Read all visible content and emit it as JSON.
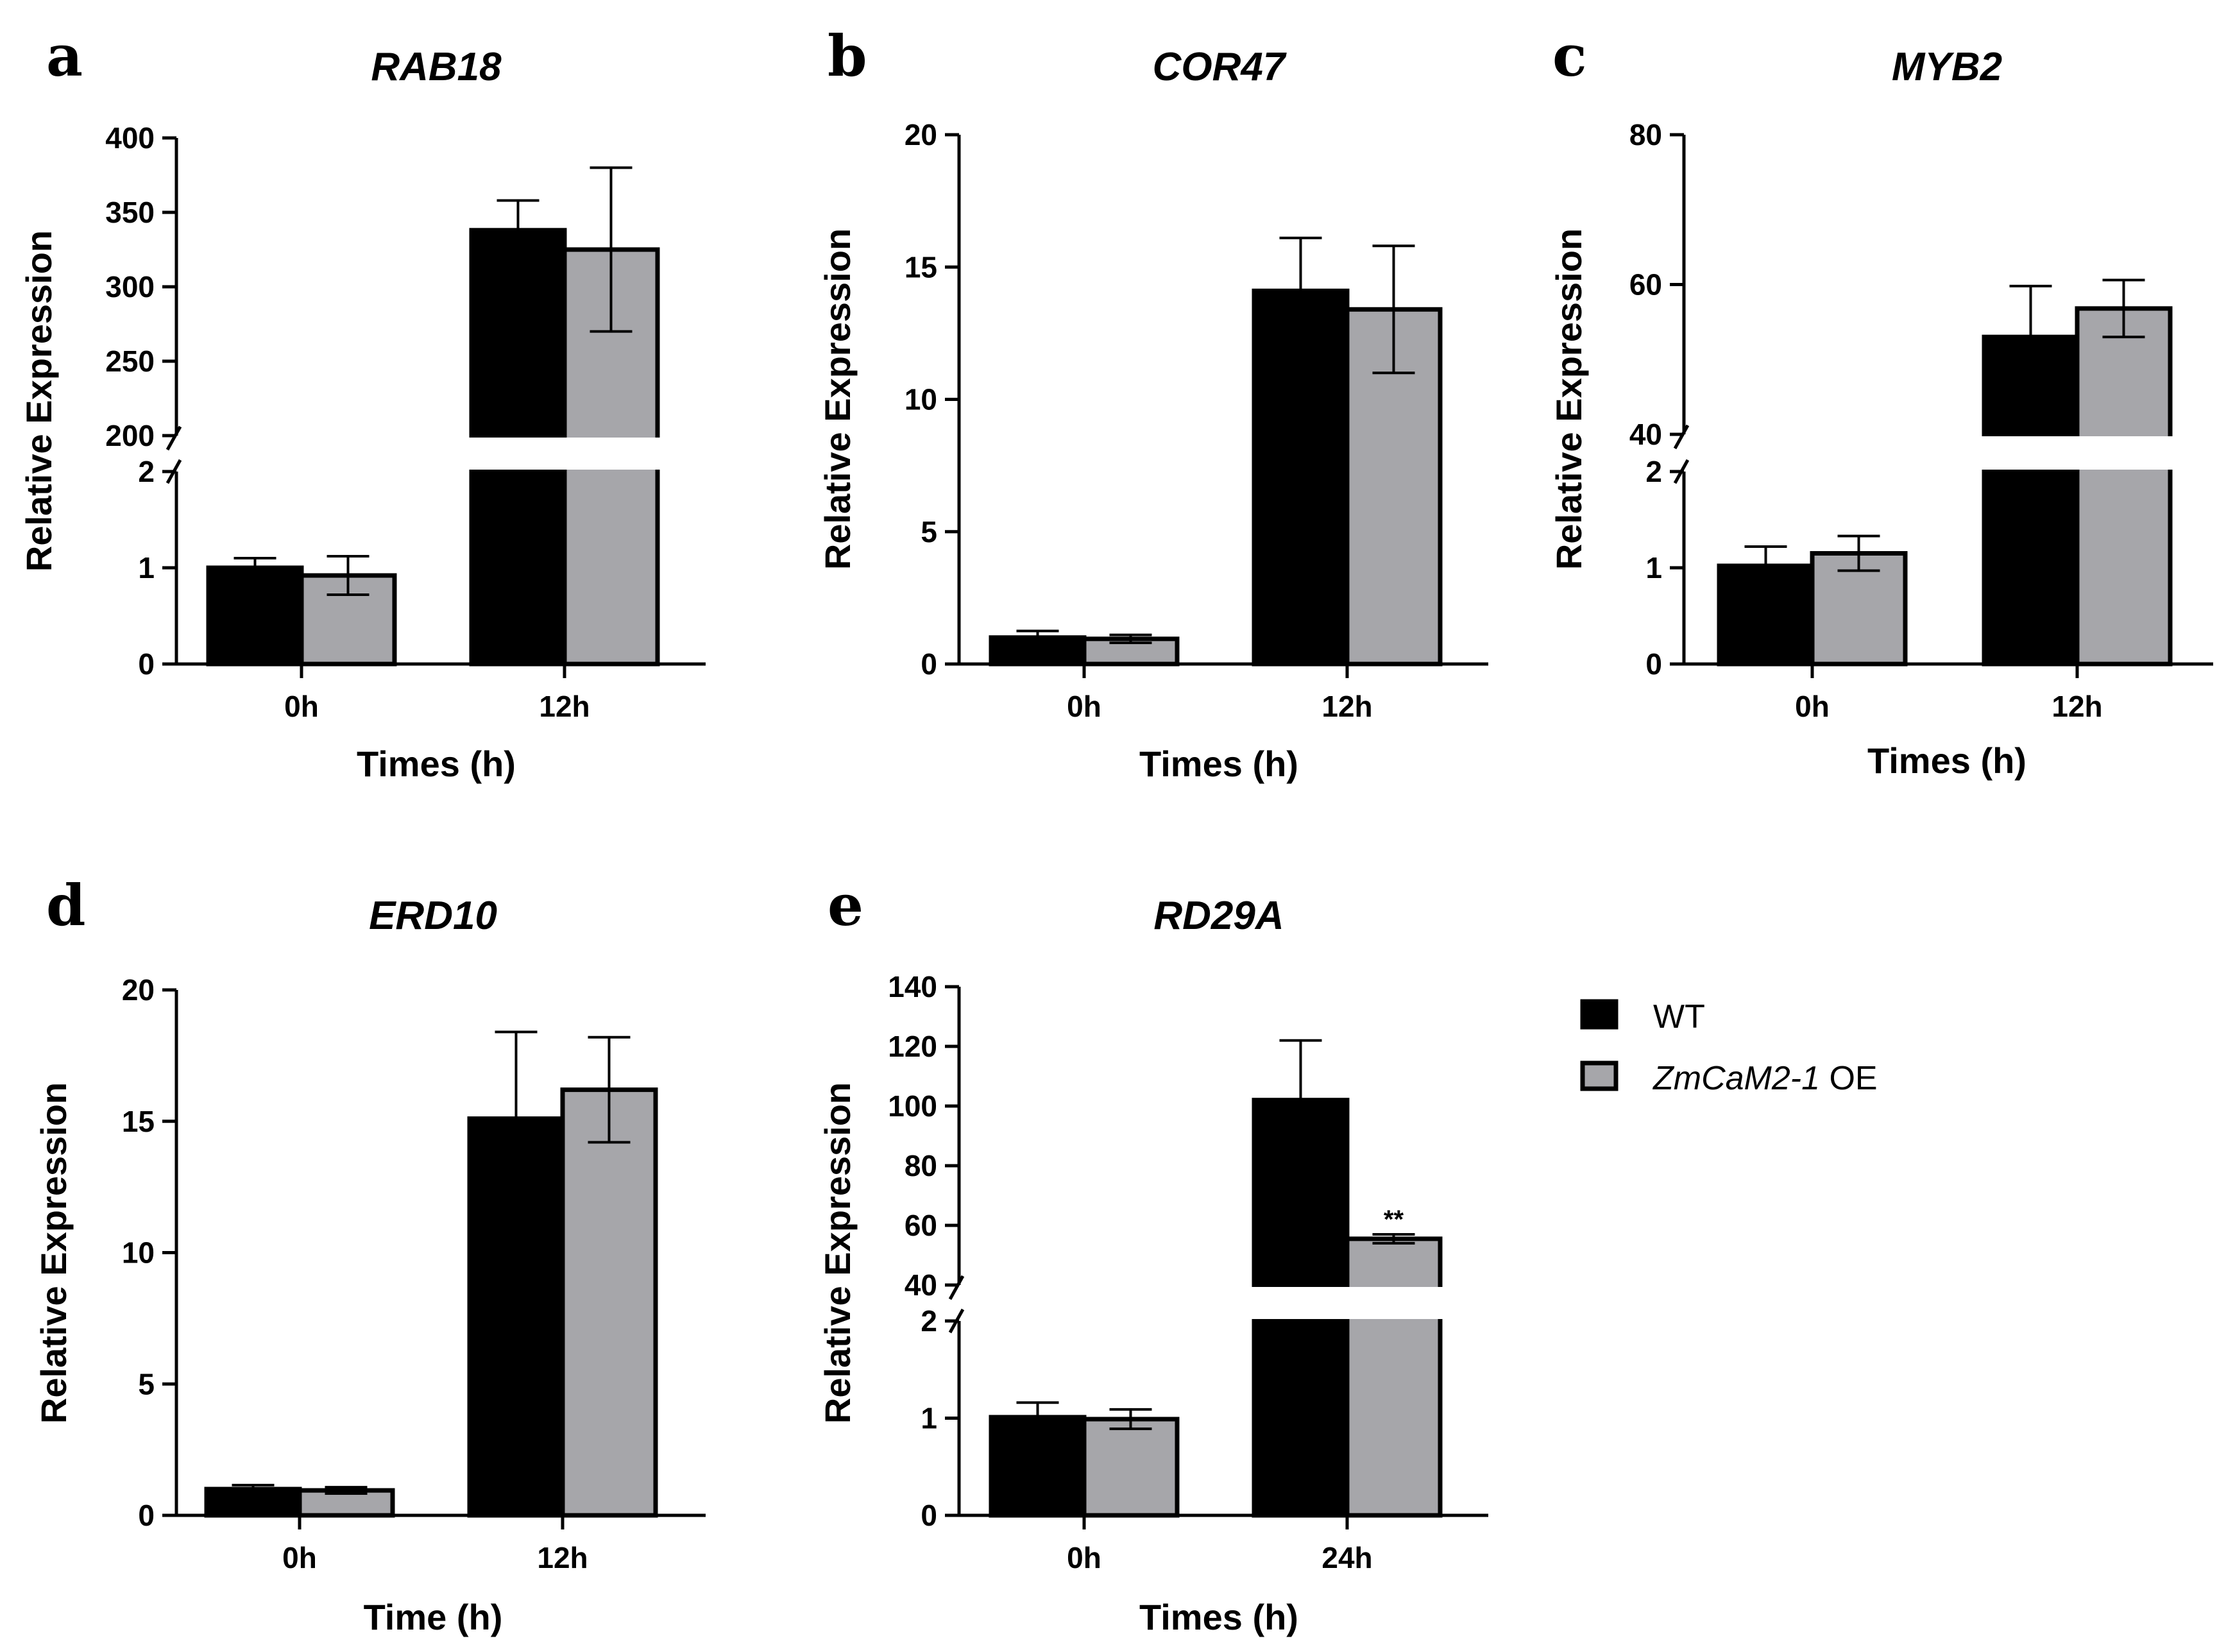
{
  "legend": {
    "items": [
      {
        "label": "WT",
        "color": "#000000"
      },
      {
        "label": "ZmCaM2-1",
        "label_suffix": " OE",
        "color": "#a6a6aa"
      }
    ]
  },
  "chart_data": [
    {
      "panel": "a",
      "title": "RAB18",
      "type": "bar",
      "xlabel": "Times (h)",
      "ylabel": "Relative Expression",
      "categories": [
        "0h",
        "12h"
      ],
      "series": [
        {
          "name": "WT",
          "values": [
            1.0,
            338
          ],
          "errors": [
            0.1,
            20
          ]
        },
        {
          "name": "ZmCaM2-1 OE",
          "values": [
            0.92,
            325
          ],
          "errors": [
            0.2,
            55
          ]
        }
      ],
      "axis_break": {
        "lower": [
          0,
          2
        ],
        "upper": [
          200,
          400
        ]
      },
      "yticks_lower": [
        0,
        1,
        2
      ],
      "yticks_upper": [
        200,
        250,
        300,
        350,
        400
      ],
      "significance": []
    },
    {
      "panel": "b",
      "title": "COR47",
      "type": "bar",
      "xlabel": "Times (h)",
      "ylabel": "Relative Expression",
      "categories": [
        "0h",
        "12h"
      ],
      "series": [
        {
          "name": "WT",
          "values": [
            1.0,
            14.1
          ],
          "errors": [
            0.25,
            2.0
          ]
        },
        {
          "name": "ZmCaM2-1 OE",
          "values": [
            0.95,
            13.4
          ],
          "errors": [
            0.15,
            2.4
          ]
        }
      ],
      "ylim": [
        0,
        20
      ],
      "yticks": [
        0,
        5,
        10,
        15,
        20
      ],
      "significance": []
    },
    {
      "panel": "c",
      "title": "MYB2",
      "type": "bar",
      "xlabel": "Times (h)",
      "ylabel": "Relative Expression",
      "categories": [
        "0h",
        "12h"
      ],
      "series": [
        {
          "name": "WT",
          "values": [
            1.02,
            53
          ],
          "errors": [
            0.2,
            6.8
          ]
        },
        {
          "name": "ZmCaM2-1 OE",
          "values": [
            1.15,
            56.8
          ],
          "errors": [
            0.18,
            3.8
          ]
        }
      ],
      "axis_break": {
        "lower": [
          0,
          2
        ],
        "upper": [
          40,
          80
        ]
      },
      "yticks_lower": [
        0,
        1,
        2
      ],
      "yticks_upper": [
        40,
        60,
        80
      ],
      "significance": []
    },
    {
      "panel": "d",
      "title": "ERD10",
      "type": "bar",
      "xlabel": "Time (h)",
      "ylabel": "Relative Expression",
      "categories": [
        "0h",
        "12h"
      ],
      "series": [
        {
          "name": "WT",
          "values": [
            1.0,
            15.1
          ],
          "errors": [
            0.15,
            3.3
          ]
        },
        {
          "name": "ZmCaM2-1 OE",
          "values": [
            0.95,
            16.2
          ],
          "errors": [
            0.12,
            2.0
          ]
        }
      ],
      "ylim": [
        0,
        20
      ],
      "yticks": [
        0,
        5,
        10,
        15,
        20
      ],
      "significance": []
    },
    {
      "panel": "e",
      "title": "RD29A",
      "type": "bar",
      "xlabel": "Times (h)",
      "ylabel": "Relative Expression",
      "categories": [
        "0h",
        "24h"
      ],
      "series": [
        {
          "name": "WT",
          "values": [
            1.01,
            102
          ],
          "errors": [
            0.15,
            20
          ]
        },
        {
          "name": "ZmCaM2-1 OE",
          "values": [
            0.99,
            55.5
          ],
          "errors": [
            0.1,
            1.5
          ]
        }
      ],
      "axis_break": {
        "lower": [
          0,
          2
        ],
        "upper": [
          40,
          140
        ]
      },
      "yticks_lower": [
        0,
        1,
        2
      ],
      "yticks_upper": [
        40,
        60,
        80,
        100,
        120,
        140
      ],
      "significance": [
        {
          "category": 1,
          "series": 1,
          "label": "**"
        }
      ]
    }
  ]
}
